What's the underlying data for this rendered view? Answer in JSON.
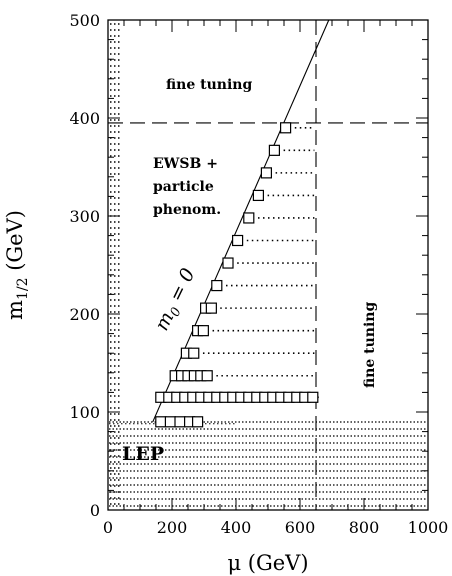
{
  "chart_data": {
    "type": "scatter",
    "title": "",
    "xlabel": "μ (GeV)",
    "ylabel_main": "m",
    "ylabel_sub": "1/2",
    "ylabel_unit": " (GeV)",
    "xlim": [
      0,
      1000
    ],
    "ylim": [
      0,
      500
    ],
    "xticks": [
      "0",
      "200",
      "400",
      "600",
      "800",
      "1000"
    ],
    "yticks": [
      "0",
      "100",
      "200",
      "300",
      "400",
      "500"
    ],
    "x_tick_values": [
      0,
      200,
      400,
      600,
      800,
      1000
    ],
    "y_tick_values": [
      0,
      100,
      200,
      300,
      400,
      500
    ],
    "grid": false,
    "annotations": {
      "fine_tuning_top": "fine tuning",
      "fine_tuning_right": "fine tuning",
      "ewsb_line1": "EWSB +",
      "ewsb_line2": "particle",
      "ewsb_line3": "phenom.",
      "m0_label": "m",
      "m0_sub": "0",
      "m0_rest": " = 0",
      "lep": "LEP"
    },
    "reference_lines": {
      "m0_zero_line": [
        [
          140,
          90
        ],
        [
          690,
          500
        ]
      ],
      "fine_tuning_horizontal_y": 395,
      "fine_tuning_vertical_x": 650
    },
    "lep_limit_y": 90,
    "series": [
      {
        "marker": "square",
        "points": [
          [
            165,
            90
          ],
          [
            195,
            90
          ],
          [
            225,
            90
          ],
          [
            255,
            90
          ],
          [
            280,
            90
          ],
          [
            165,
            115
          ],
          [
            190,
            115
          ],
          [
            215,
            115
          ],
          [
            240,
            115
          ],
          [
            265,
            115
          ],
          [
            290,
            115
          ],
          [
            315,
            115
          ],
          [
            340,
            115
          ],
          [
            365,
            115
          ],
          [
            390,
            115
          ],
          [
            415,
            115
          ],
          [
            440,
            115
          ],
          [
            465,
            115
          ],
          [
            490,
            115
          ],
          [
            515,
            115
          ],
          [
            540,
            115
          ],
          [
            565,
            115
          ],
          [
            590,
            115
          ],
          [
            615,
            115
          ],
          [
            640,
            115
          ],
          [
            210,
            137
          ],
          [
            230,
            137
          ],
          [
            250,
            137
          ],
          [
            270,
            137
          ],
          [
            290,
            137
          ],
          [
            310,
            137
          ],
          [
            245,
            160
          ],
          [
            268,
            160
          ],
          [
            280,
            183
          ],
          [
            298,
            183
          ],
          [
            305,
            206
          ],
          [
            323,
            206
          ],
          [
            340,
            229
          ],
          [
            375,
            252
          ],
          [
            405,
            275
          ],
          [
            440,
            298
          ],
          [
            470,
            321
          ],
          [
            495,
            344
          ],
          [
            520,
            367
          ],
          [
            555,
            390
          ]
        ]
      }
    ],
    "dotted_rows": [
      {
        "y": 115,
        "x_end": 645
      },
      {
        "y": 137,
        "x_end": 645
      },
      {
        "y": 160,
        "x_end": 645
      },
      {
        "y": 183,
        "x_end": 645
      },
      {
        "y": 206,
        "x_end": 645
      },
      {
        "y": 229,
        "x_end": 645
      },
      {
        "y": 252,
        "x_end": 645
      },
      {
        "y": 275,
        "x_end": 645
      },
      {
        "y": 298,
        "x_end": 645
      },
      {
        "y": 321,
        "x_end": 645
      },
      {
        "y": 344,
        "x_end": 645
      },
      {
        "y": 367,
        "x_end": 645
      },
      {
        "y": 390,
        "x_end": 645
      }
    ]
  }
}
